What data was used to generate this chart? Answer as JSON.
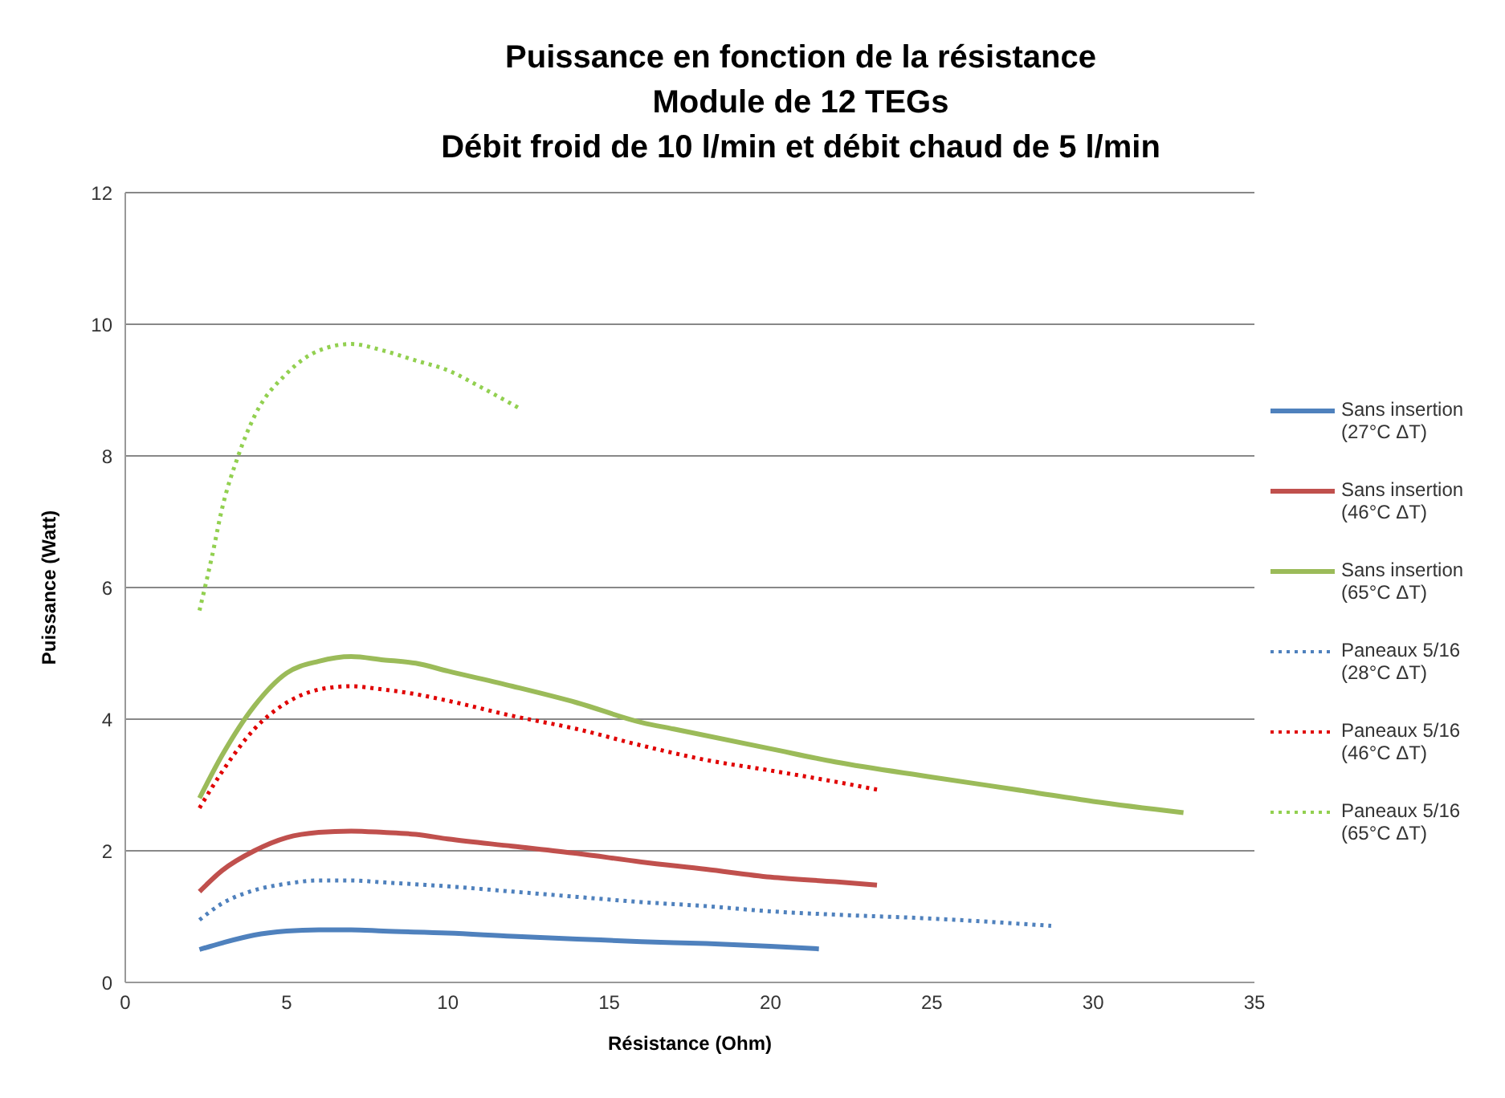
{
  "chart_data": {
    "type": "line",
    "title": "Puissance en fonction de la résistance",
    "subtitle": "Module de 12 TEGs\nDébit froid de 10 l/min et débit chaud de 5 l/min",
    "xlabel": "Résistance (Ohm)",
    "ylabel": "Puissance (Watt)",
    "xlim": [
      0,
      35
    ],
    "xticks": [
      0,
      5,
      10,
      15,
      20,
      25,
      30,
      35
    ],
    "ylim": [
      0,
      12
    ],
    "yticks": [
      0,
      2,
      4,
      6,
      8,
      10,
      12
    ],
    "grid": "y",
    "legend": "right",
    "marker": "none",
    "series": [
      {
        "name": "Sans insertion (27°C ΔT)",
        "color": "#4f81bd",
        "line_style": "solid",
        "x": [
          2.3,
          3,
          4,
          5,
          6,
          7,
          8,
          10,
          12,
          14,
          16,
          18,
          20,
          21.5
        ],
        "values": [
          0.5,
          0.6,
          0.72,
          0.78,
          0.8,
          0.8,
          0.78,
          0.75,
          0.7,
          0.66,
          0.62,
          0.59,
          0.55,
          0.51
        ]
      },
      {
        "name": "Sans insertion (46°C ΔT)",
        "color": "#c0504d",
        "line_style": "solid",
        "x": [
          2.3,
          3,
          4,
          5,
          6,
          7,
          8,
          9,
          10,
          12,
          14,
          16,
          18,
          20,
          22,
          23.3
        ],
        "values": [
          1.38,
          1.7,
          2.0,
          2.2,
          2.28,
          2.3,
          2.28,
          2.25,
          2.18,
          2.07,
          1.96,
          1.83,
          1.72,
          1.6,
          1.53,
          1.48
        ]
      },
      {
        "name": "Sans insertion (65°C ΔT)",
        "color": "#9bbb59",
        "line_style": "solid",
        "x": [
          2.3,
          3,
          4,
          5,
          6,
          7,
          8,
          9,
          10,
          12,
          14,
          16,
          17,
          20,
          22,
          25,
          28,
          30,
          32.8
        ],
        "values": [
          2.8,
          3.45,
          4.2,
          4.7,
          4.88,
          4.95,
          4.9,
          4.85,
          4.73,
          4.5,
          4.25,
          3.95,
          3.85,
          3.55,
          3.35,
          3.12,
          2.9,
          2.75,
          2.58
        ]
      },
      {
        "name": "Paneaux 5/16 (28°C ΔT)",
        "color": "#4f81bd",
        "line_style": "dotted",
        "x": [
          2.3,
          3,
          4,
          5,
          6,
          7,
          8,
          10,
          12,
          14,
          16,
          18,
          20,
          22,
          25,
          28.7
        ],
        "values": [
          0.95,
          1.2,
          1.4,
          1.5,
          1.55,
          1.55,
          1.52,
          1.46,
          1.38,
          1.3,
          1.22,
          1.16,
          1.08,
          1.03,
          0.97,
          0.86
        ]
      },
      {
        "name": "Paneaux 5/16 (46°C ΔT)",
        "color": "#e00000",
        "line_style": "dotted",
        "x": [
          2.3,
          3,
          4,
          5,
          6,
          7,
          8,
          9,
          10,
          12,
          14,
          16,
          18,
          20,
          22,
          23.3
        ],
        "values": [
          2.65,
          3.2,
          3.85,
          4.25,
          4.45,
          4.5,
          4.45,
          4.38,
          4.28,
          4.05,
          3.85,
          3.6,
          3.38,
          3.22,
          3.05,
          2.93
        ]
      },
      {
        "name": "Paneaux 5/16 (65°C ΔT)",
        "color": "#92d050",
        "line_style": "dotted",
        "x": [
          2.3,
          2.7,
          3,
          3.5,
          4,
          5,
          6,
          7,
          8,
          9,
          10,
          11,
          12.3
        ],
        "values": [
          5.65,
          6.5,
          7.2,
          8.0,
          8.6,
          9.25,
          9.6,
          9.7,
          9.6,
          9.45,
          9.3,
          9.05,
          8.7
        ]
      }
    ]
  }
}
